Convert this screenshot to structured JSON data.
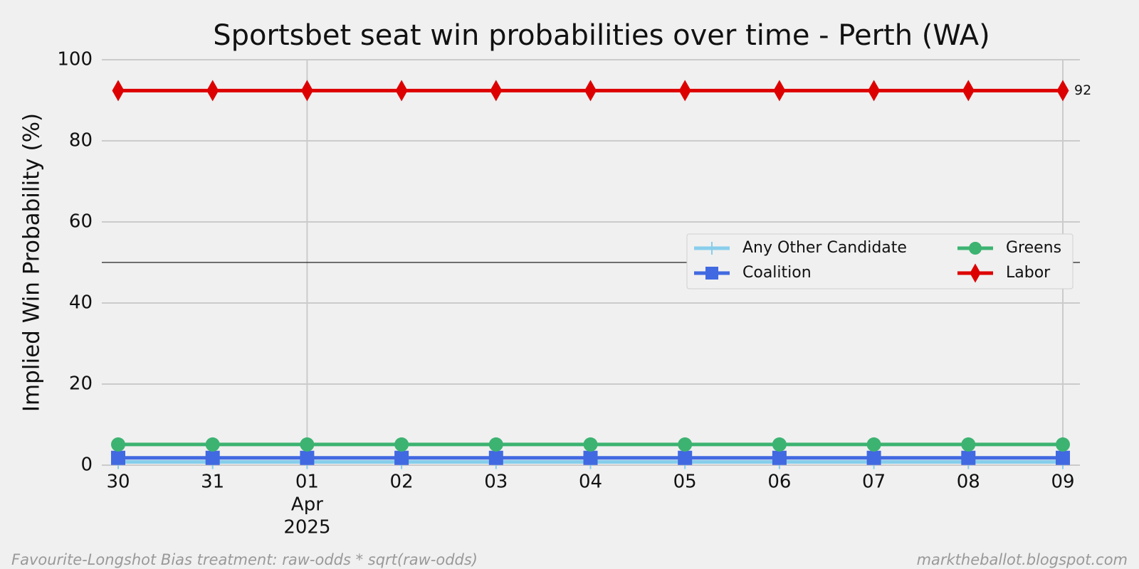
{
  "chart_data": {
    "type": "line",
    "title": "Sportsbet seat win probabilities over time - Perth (WA)",
    "y_label": "Implied Win Probability (%)",
    "categories": [
      "30",
      "31",
      "01",
      "02",
      "03",
      "04",
      "05",
      "06",
      "07",
      "08",
      "09"
    ],
    "category_months": [
      null,
      null,
      "Apr",
      null,
      null,
      null,
      null,
      null,
      null,
      null,
      null
    ],
    "category_years": [
      null,
      null,
      "2025",
      null,
      null,
      null,
      null,
      null,
      null,
      null,
      null
    ],
    "ylim": [
      0,
      100
    ],
    "yticks": [
      0,
      20,
      40,
      60,
      80,
      100
    ],
    "grid": true,
    "hline": 50,
    "legend": "right",
    "series": [
      {
        "name": "Any Other Candidate",
        "color": "#87ceeb",
        "marker": "plus",
        "values": [
          0.8,
          0.8,
          0.8,
          0.8,
          0.8,
          0.8,
          0.8,
          0.8,
          0.8,
          0.8,
          0.8
        ]
      },
      {
        "name": "Coalition",
        "color": "#4169e1",
        "marker": "square",
        "values": [
          1.8,
          1.8,
          1.8,
          1.8,
          1.8,
          1.8,
          1.8,
          1.8,
          1.8,
          1.8,
          1.8
        ]
      },
      {
        "name": "Greens",
        "color": "#3cb371",
        "marker": "circle",
        "values": [
          5.1,
          5.1,
          5.1,
          5.1,
          5.1,
          5.1,
          5.1,
          5.1,
          5.1,
          5.1,
          5.1
        ]
      },
      {
        "name": "Labor",
        "color": "#dd0000",
        "marker": "diamond",
        "values": [
          92.4,
          92.4,
          92.4,
          92.4,
          92.4,
          92.4,
          92.4,
          92.4,
          92.4,
          92.4,
          92.4
        ],
        "value_labels": [
          null,
          null,
          null,
          null,
          null,
          null,
          null,
          null,
          null,
          null,
          "92"
        ]
      }
    ],
    "footer_left": "Favourite-Longshot Bias treatment: raw-odds * sqrt(raw-odds)",
    "footer_right": "marktheballot.blogspot.com"
  }
}
